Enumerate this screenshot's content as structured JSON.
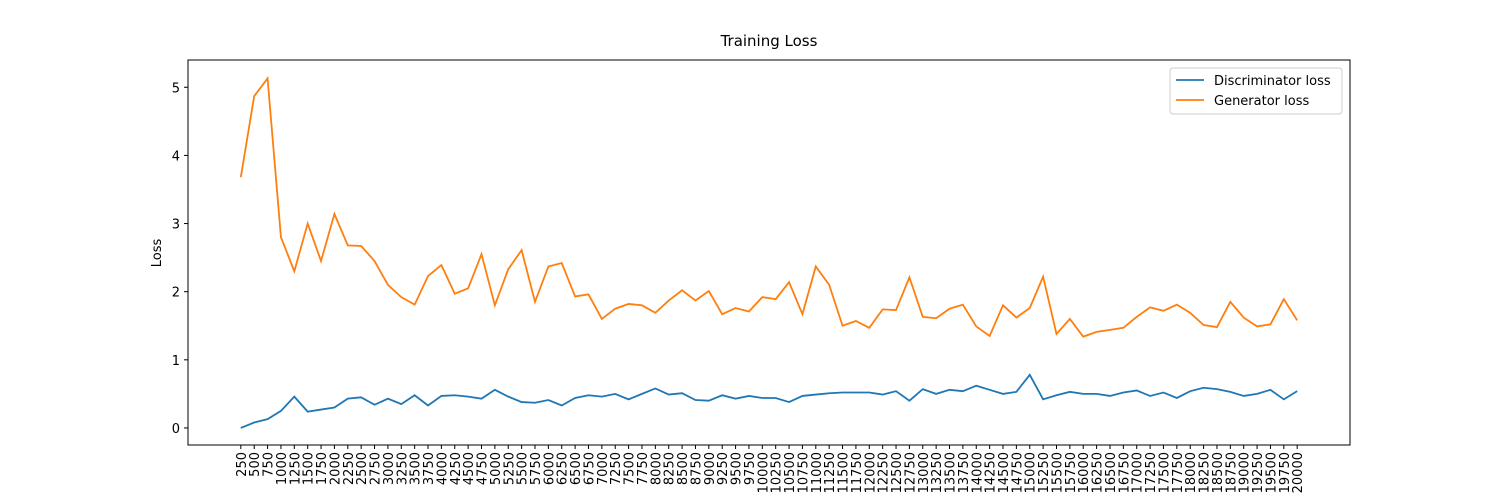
{
  "chart_data": {
    "type": "line",
    "title": "Training Loss",
    "y_label": "Loss",
    "categories": [
      250,
      500,
      750,
      1000,
      1250,
      1500,
      1750,
      2000,
      2250,
      2500,
      2750,
      3000,
      3250,
      3500,
      3750,
      4000,
      4250,
      4500,
      4750,
      5000,
      5250,
      5500,
      5750,
      6000,
      6250,
      6500,
      6750,
      7000,
      7250,
      7500,
      7750,
      8000,
      8250,
      8500,
      8750,
      9000,
      9250,
      9500,
      9750,
      10000,
      10250,
      10500,
      10750,
      11000,
      11250,
      11500,
      11750,
      12000,
      12250,
      12500,
      12750,
      13000,
      13250,
      13500,
      13750,
      14000,
      14250,
      14500,
      14750,
      15000,
      15250,
      15500,
      15750,
      16000,
      16250,
      16500,
      16750,
      17000,
      17250,
      17500,
      17750,
      18000,
      18250,
      18500,
      18750,
      19000,
      19250,
      19500,
      19750,
      20000
    ],
    "series": [
      {
        "name": "Discriminator loss",
        "color": "#1f77b4",
        "values": [
          0.0,
          0.08,
          0.13,
          0.25,
          0.46,
          0.24,
          0.27,
          0.3,
          0.43,
          0.45,
          0.34,
          0.43,
          0.35,
          0.48,
          0.33,
          0.47,
          0.48,
          0.46,
          0.43,
          0.56,
          0.46,
          0.38,
          0.37,
          0.41,
          0.33,
          0.44,
          0.48,
          0.46,
          0.5,
          0.42,
          0.5,
          0.58,
          0.49,
          0.51,
          0.41,
          0.4,
          0.48,
          0.43,
          0.47,
          0.44,
          0.44,
          0.38,
          0.47,
          0.49,
          0.51,
          0.52,
          0.52,
          0.52,
          0.49,
          0.54,
          0.4,
          0.57,
          0.5,
          0.56,
          0.54,
          0.62,
          0.56,
          0.5,
          0.53,
          0.78,
          0.42,
          0.48,
          0.53,
          0.5,
          0.5,
          0.47,
          0.52,
          0.55,
          0.47,
          0.52,
          0.44,
          0.54,
          0.59,
          0.57,
          0.53,
          0.47,
          0.5,
          0.56,
          0.42,
          0.54
        ]
      },
      {
        "name": "Generator loss",
        "color": "#ff7f0e",
        "values": [
          3.68,
          4.87,
          5.13,
          2.8,
          2.3,
          3.0,
          2.45,
          3.14,
          2.68,
          2.67,
          2.45,
          2.1,
          1.92,
          1.81,
          2.23,
          2.39,
          1.97,
          2.05,
          2.55,
          1.8,
          2.33,
          2.61,
          1.85,
          2.37,
          2.42,
          1.93,
          1.96,
          1.6,
          1.75,
          1.82,
          1.8,
          1.69,
          1.87,
          2.02,
          1.87,
          2.01,
          1.67,
          1.76,
          1.71,
          1.92,
          1.89,
          2.14,
          1.67,
          2.37,
          2.1,
          1.5,
          1.57,
          1.47,
          1.74,
          1.73,
          2.21,
          1.63,
          1.61,
          1.75,
          1.81,
          1.49,
          1.35,
          1.8,
          1.62,
          1.76,
          2.22,
          1.38,
          1.6,
          1.34,
          1.41,
          1.44,
          1.47,
          1.63,
          1.77,
          1.72,
          1.81,
          1.69,
          1.51,
          1.48,
          1.85,
          1.62,
          1.49,
          1.52,
          1.89,
          1.58
        ]
      }
    ],
    "ylim": [
      -0.25,
      5.4
    ],
    "yticks": [
      0,
      1,
      2,
      3,
      4,
      5
    ],
    "legend": "upper right"
  }
}
